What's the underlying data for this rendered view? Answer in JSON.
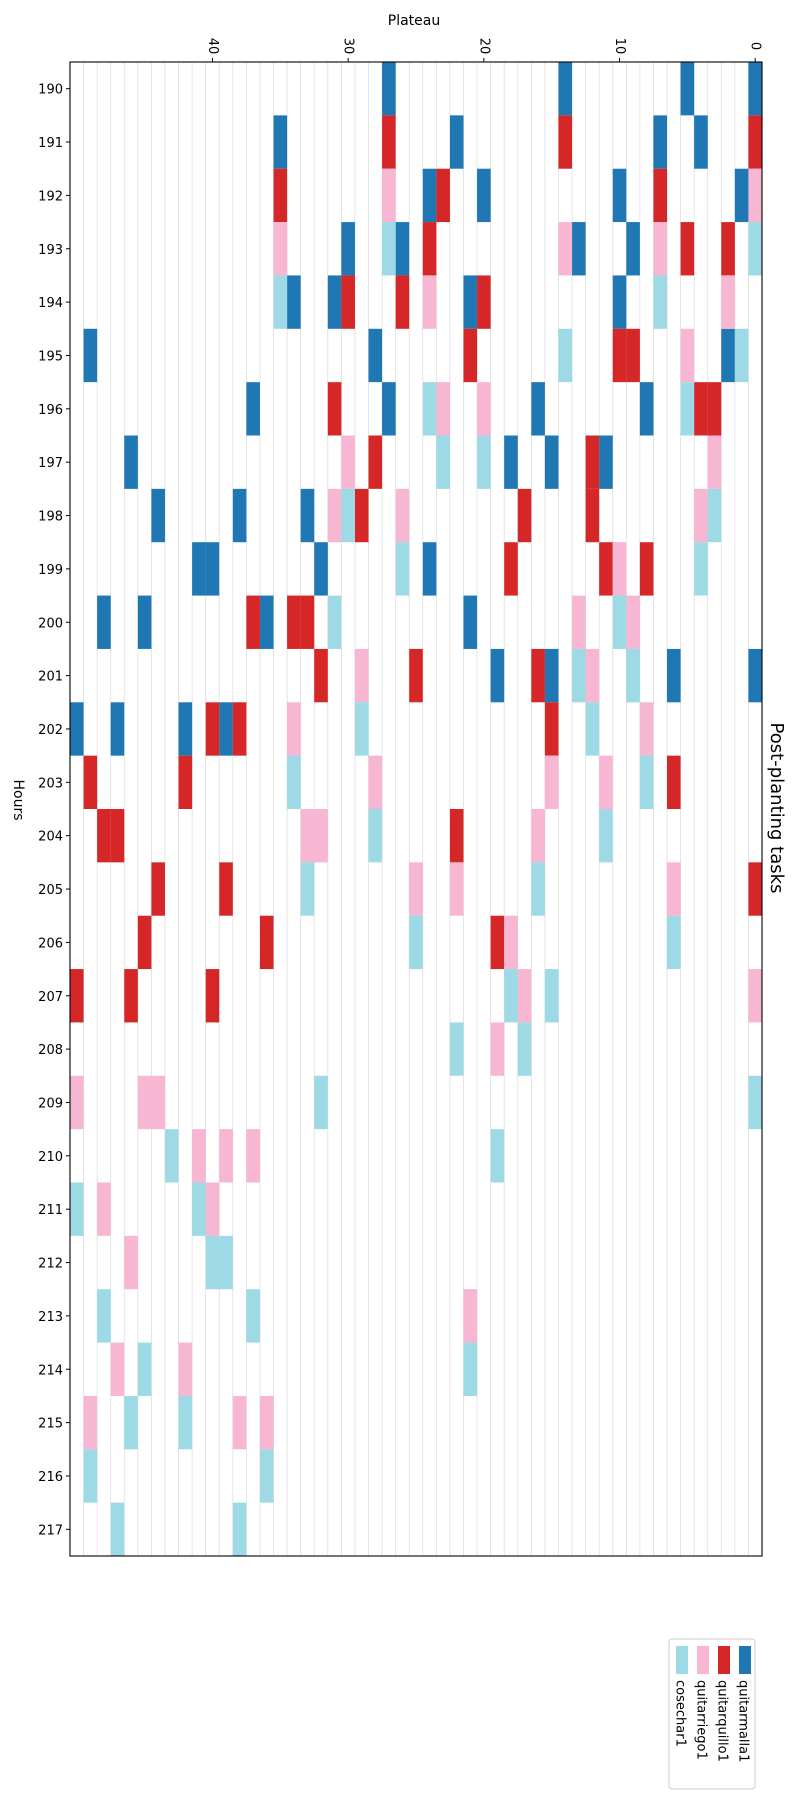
{
  "chart_data": {
    "type": "heatmap",
    "title": "Post-planting tasks",
    "xlabel": "Plateau",
    "ylabel": "Hours",
    "x_ticks": [
      0,
      10,
      20,
      30,
      40
    ],
    "xlim": [
      0,
      50
    ],
    "y_categories": [
      "190",
      "191",
      "192",
      "193",
      "194",
      "195",
      "196",
      "197",
      "198",
      "199",
      "200",
      "201",
      "202",
      "203",
      "204",
      "205",
      "206",
      "207",
      "208",
      "209",
      "210",
      "211",
      "212",
      "213",
      "214",
      "215",
      "216",
      "217"
    ],
    "grid": true,
    "legend_position": "bottom-right",
    "series": [
      {
        "name": "quitarmalla1",
        "color": "#1f77b4",
        "cells": [
          [
            190,
            0
          ],
          [
            190,
            5
          ],
          [
            190,
            14
          ],
          [
            190,
            27
          ],
          [
            191,
            4
          ],
          [
            191,
            7
          ],
          [
            191,
            22
          ],
          [
            191,
            35
          ],
          [
            192,
            1
          ],
          [
            192,
            10
          ],
          [
            192,
            20
          ],
          [
            192,
            24
          ],
          [
            193,
            9
          ],
          [
            193,
            13
          ],
          [
            193,
            26
          ],
          [
            193,
            30
          ],
          [
            194,
            10
          ],
          [
            194,
            21
          ],
          [
            194,
            31
          ],
          [
            194,
            34
          ],
          [
            195,
            2
          ],
          [
            195,
            28
          ],
          [
            195,
            49
          ],
          [
            196,
            8
          ],
          [
            196,
            16
          ],
          [
            196,
            27
          ],
          [
            196,
            37
          ],
          [
            197,
            11
          ],
          [
            197,
            15
          ],
          [
            197,
            18
          ],
          [
            197,
            46
          ],
          [
            198,
            33
          ],
          [
            198,
            38
          ],
          [
            198,
            44
          ],
          [
            199,
            24
          ],
          [
            199,
            32
          ],
          [
            199,
            40
          ],
          [
            199,
            41
          ],
          [
            200,
            21
          ],
          [
            200,
            36
          ],
          [
            200,
            45
          ],
          [
            200,
            48
          ],
          [
            201,
            0
          ],
          [
            201,
            6
          ],
          [
            201,
            15
          ],
          [
            201,
            19
          ],
          [
            202,
            39
          ],
          [
            202,
            42
          ],
          [
            202,
            47
          ],
          [
            202,
            50
          ]
        ]
      },
      {
        "name": "quitarquillo1",
        "color": "#d62728",
        "cells": [
          [
            191,
            0
          ],
          [
            191,
            14
          ],
          [
            191,
            27
          ],
          [
            192,
            7
          ],
          [
            192,
            23
          ],
          [
            192,
            35
          ],
          [
            193,
            2
          ],
          [
            193,
            5
          ],
          [
            193,
            24
          ],
          [
            194,
            20
          ],
          [
            194,
            26
          ],
          [
            194,
            30
          ],
          [
            195,
            9
          ],
          [
            195,
            10
          ],
          [
            195,
            21
          ],
          [
            196,
            3
          ],
          [
            196,
            4
          ],
          [
            196,
            31
          ],
          [
            197,
            12
          ],
          [
            197,
            28
          ],
          [
            198,
            12
          ],
          [
            198,
            17
          ],
          [
            198,
            29
          ],
          [
            199,
            8
          ],
          [
            199,
            11
          ],
          [
            199,
            18
          ],
          [
            200,
            33
          ],
          [
            200,
            34
          ],
          [
            200,
            37
          ],
          [
            201,
            16
          ],
          [
            201,
            25
          ],
          [
            201,
            32
          ],
          [
            202,
            15
          ],
          [
            202,
            38
          ],
          [
            202,
            40
          ],
          [
            203,
            6
          ],
          [
            203,
            42
          ],
          [
            203,
            49
          ],
          [
            204,
            22
          ],
          [
            204,
            47
          ],
          [
            204,
            48
          ],
          [
            205,
            0
          ],
          [
            205,
            39
          ],
          [
            205,
            44
          ],
          [
            206,
            19
          ],
          [
            206,
            36
          ],
          [
            206,
            45
          ],
          [
            207,
            40
          ],
          [
            207,
            46
          ],
          [
            207,
            50
          ]
        ]
      },
      {
        "name": "quitarriego1",
        "color": "#f7b6d2",
        "cells": [
          [
            192,
            0
          ],
          [
            192,
            27
          ],
          [
            193,
            7
          ],
          [
            193,
            14
          ],
          [
            193,
            35
          ],
          [
            194,
            2
          ],
          [
            194,
            24
          ],
          [
            195,
            5
          ],
          [
            196,
            20
          ],
          [
            196,
            23
          ],
          [
            197,
            3
          ],
          [
            197,
            30
          ],
          [
            198,
            4
          ],
          [
            198,
            26
          ],
          [
            198,
            31
          ],
          [
            199,
            10
          ],
          [
            200,
            9
          ],
          [
            200,
            13
          ],
          [
            201,
            12
          ],
          [
            201,
            29
          ],
          [
            202,
            8
          ],
          [
            202,
            34
          ],
          [
            203,
            11
          ],
          [
            203,
            15
          ],
          [
            203,
            28
          ],
          [
            204,
            16
          ],
          [
            204,
            32
          ],
          [
            204,
            33
          ],
          [
            205,
            6
          ],
          [
            205,
            22
          ],
          [
            205,
            25
          ],
          [
            206,
            18
          ],
          [
            207,
            0
          ],
          [
            207,
            17
          ],
          [
            208,
            19
          ],
          [
            209,
            44
          ],
          [
            209,
            45
          ],
          [
            209,
            50
          ],
          [
            210,
            37
          ],
          [
            210,
            39
          ],
          [
            210,
            41
          ],
          [
            211,
            40
          ],
          [
            211,
            48
          ],
          [
            212,
            46
          ],
          [
            213,
            21
          ],
          [
            214,
            42
          ],
          [
            214,
            47
          ],
          [
            215,
            36
          ],
          [
            215,
            38
          ],
          [
            215,
            49
          ]
        ]
      },
      {
        "name": "cosechar1",
        "color": "#9edae5",
        "cells": [
          [
            193,
            0
          ],
          [
            193,
            27
          ],
          [
            194,
            7
          ],
          [
            194,
            35
          ],
          [
            195,
            1
          ],
          [
            195,
            14
          ],
          [
            196,
            5
          ],
          [
            196,
            24
          ],
          [
            197,
            20
          ],
          [
            197,
            23
          ],
          [
            198,
            3
          ],
          [
            198,
            30
          ],
          [
            199,
            4
          ],
          [
            199,
            26
          ],
          [
            200,
            10
          ],
          [
            200,
            31
          ],
          [
            201,
            9
          ],
          [
            201,
            13
          ],
          [
            202,
            12
          ],
          [
            202,
            29
          ],
          [
            203,
            8
          ],
          [
            203,
            34
          ],
          [
            204,
            11
          ],
          [
            204,
            28
          ],
          [
            205,
            16
          ],
          [
            205,
            33
          ],
          [
            206,
            6
          ],
          [
            206,
            25
          ],
          [
            207,
            15
          ],
          [
            207,
            18
          ],
          [
            208,
            17
          ],
          [
            208,
            22
          ],
          [
            209,
            0
          ],
          [
            209,
            32
          ],
          [
            210,
            19
          ],
          [
            210,
            43
          ],
          [
            211,
            41
          ],
          [
            211,
            50
          ],
          [
            212,
            39
          ],
          [
            212,
            40
          ],
          [
            213,
            37
          ],
          [
            213,
            48
          ],
          [
            214,
            21
          ],
          [
            214,
            45
          ],
          [
            215,
            42
          ],
          [
            215,
            46
          ],
          [
            216,
            36
          ],
          [
            216,
            49
          ],
          [
            217,
            38
          ],
          [
            217,
            47
          ]
        ]
      }
    ]
  }
}
